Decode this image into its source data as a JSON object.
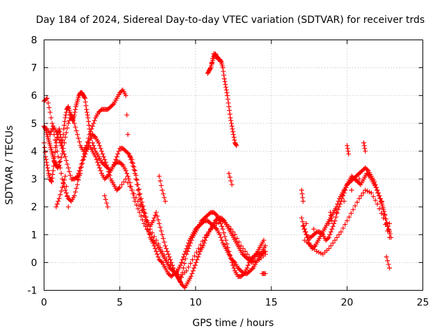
{
  "chart_data": {
    "type": "scatter",
    "title": "Day 184 of 2024, Sidereal Day-to-day VTEC variation (SDTVAR) for receiver trds",
    "xlabel": "GPS time / hours",
    "ylabel": "SDTVAR / TECUs",
    "xlim": [
      0,
      25
    ],
    "ylim": [
      -1,
      8
    ],
    "xticks": [
      "0",
      "5",
      "10",
      "15",
      "20",
      "25"
    ],
    "yticks": [
      "-1",
      "0",
      "1",
      "2",
      "3",
      "4",
      "5",
      "6",
      "7",
      "8"
    ],
    "grid": true,
    "marker": "+",
    "series_color": "#ff0000",
    "series": [
      {
        "name": "SDTVAR",
        "x": [
          0.0,
          0.1,
          0.2,
          0.3,
          0.4,
          0.5,
          0.6,
          0.7,
          0.8,
          0.9,
          1.0,
          1.1,
          1.2,
          1.3,
          1.4,
          1.5,
          1.6,
          1.7,
          1.8,
          1.9,
          2.0,
          2.1,
          2.2,
          2.3,
          2.4,
          2.5,
          2.6,
          2.7,
          2.8,
          2.9,
          3.0,
          3.2,
          3.4,
          3.6,
          3.8,
          4.0,
          4.2,
          4.4,
          4.6,
          4.8,
          5.0,
          5.2,
          5.4,
          5.6,
          5.8,
          6.0,
          6.2,
          6.4,
          6.6,
          6.8,
          7.0,
          7.2,
          7.4,
          7.6,
          7.8,
          8.0,
          8.2,
          8.4,
          8.6,
          8.8,
          9.0,
          9.2,
          9.4,
          9.6,
          9.8,
          10.0,
          10.2,
          10.4,
          10.6,
          10.8,
          11.0,
          11.2,
          11.4,
          11.6,
          11.8,
          12.0,
          12.2,
          12.4,
          12.6,
          12.8,
          13.0,
          13.2,
          13.4,
          13.6,
          13.8,
          14.0,
          14.2,
          14.4,
          14.6,
          17.0,
          17.2,
          17.4,
          17.6,
          17.8,
          18.0,
          18.2,
          18.4,
          18.6,
          18.8,
          19.0,
          19.2,
          19.4,
          19.6,
          19.8,
          20.0,
          20.2,
          20.4,
          20.6,
          20.8,
          21.0,
          21.2,
          21.4,
          21.6,
          21.8,
          22.0,
          22.2,
          22.4,
          22.6,
          22.8
        ],
        "y": [
          4.3,
          3.8,
          3.5,
          3.2,
          3.0,
          2.9,
          3.3,
          3.8,
          4.3,
          4.6,
          4.8,
          4.5,
          4.2,
          4.8,
          5.2,
          5.5,
          5.6,
          5.4,
          5.2,
          5.1,
          5.3,
          5.6,
          5.8,
          6.0,
          6.1,
          6.1,
          6.0,
          5.9,
          5.5,
          5.2,
          4.8,
          4.3,
          4.0,
          3.8,
          3.6,
          3.5,
          3.4,
          3.3,
          3.5,
          3.8,
          4.1,
          4.1,
          4.0,
          3.9,
          3.7,
          3.3,
          2.8,
          2.3,
          1.9,
          1.5,
          1.3,
          1.5,
          1.8,
          1.4,
          1.0,
          0.6,
          0.3,
          0.0,
          -0.3,
          -0.5,
          -0.7,
          -0.2,
          0.3,
          0.6,
          0.9,
          1.1,
          1.3,
          1.5,
          1.6,
          1.7,
          1.8,
          1.8,
          1.7,
          1.5,
          1.2,
          0.8,
          0.4,
          0.0,
          -0.3,
          -0.5,
          -0.5,
          -0.4,
          -0.2,
          0.1,
          0.2,
          0.3,
          0.3,
          0.3,
          0.4,
          1.6,
          1.2,
          0.9,
          0.9,
          1.0,
          1.1,
          1.1,
          1.0,
          0.8,
          0.9,
          1.2,
          1.5,
          1.9,
          2.2,
          2.5,
          2.8,
          2.9,
          3.0,
          3.1,
          3.2,
          3.3,
          3.4,
          3.3,
          3.1,
          2.9,
          2.6,
          2.3,
          1.9,
          1.4,
          1.1
        ]
      },
      {
        "name": "SDTVAR",
        "x": [
          0.0,
          0.1,
          0.2,
          0.3,
          0.4,
          0.5,
          0.6,
          0.7,
          0.8,
          0.9,
          1.0,
          1.2,
          1.4,
          1.6,
          1.8,
          2.0,
          2.2,
          2.4,
          2.6,
          2.8,
          3.0,
          3.2,
          3.4,
          3.6,
          3.8,
          4.0,
          4.2,
          4.4,
          4.6,
          4.8,
          5.0,
          5.2,
          5.4,
          5.6,
          5.8,
          6.0,
          6.2,
          6.4,
          6.6,
          6.8,
          7.0,
          7.2,
          7.4,
          7.6,
          7.8,
          8.0,
          8.2,
          8.4,
          8.6,
          8.8,
          9.0,
          9.2,
          9.4,
          9.6,
          9.8,
          10.0,
          10.2,
          10.4,
          10.6,
          10.8,
          11.0,
          11.2,
          11.4,
          11.6,
          11.8,
          12.0,
          12.2,
          12.4,
          12.6,
          12.8,
          13.0,
          13.2,
          13.4,
          13.6,
          13.8,
          14.0,
          14.2,
          14.4,
          14.6,
          17.1,
          17.3,
          17.5,
          17.7,
          17.9,
          18.1,
          18.3,
          18.5,
          18.7,
          18.9,
          19.1,
          19.3,
          19.5,
          19.7,
          19.9,
          20.1,
          20.3,
          20.5,
          20.7,
          20.9,
          21.1,
          21.3,
          21.5,
          21.7,
          21.9,
          22.1,
          22.3,
          22.5,
          22.7,
          22.9
        ],
        "y": [
          4.9,
          4.8,
          4.6,
          4.4,
          4.2,
          4.0,
          3.8,
          3.6,
          3.5,
          3.4,
          3.5,
          3.9,
          4.5,
          5.0,
          5.3,
          5.0,
          4.6,
          4.2,
          4.0,
          4.2,
          4.6,
          4.9,
          5.2,
          5.4,
          5.5,
          5.5,
          5.5,
          5.6,
          5.7,
          5.9,
          6.1,
          6.2,
          6.0,
          3.9,
          3.6,
          3.2,
          2.6,
          2.1,
          1.8,
          1.3,
          0.9,
          0.7,
          0.4,
          0.1,
          0.0,
          -0.2,
          -0.4,
          -0.5,
          -0.4,
          -0.3,
          -0.1,
          0.2,
          0.5,
          0.8,
          1.0,
          1.2,
          1.3,
          1.4,
          1.5,
          1.5,
          1.4,
          1.3,
          1.2,
          1.0,
          0.7,
          0.5,
          0.3,
          0.1,
          0.0,
          -0.2,
          -0.3,
          -0.4,
          -0.4,
          -0.3,
          -0.2,
          0.0,
          0.2,
          0.4,
          0.6,
          1.3,
          1.0,
          0.7,
          0.5,
          0.6,
          0.8,
          1.0,
          1.2,
          1.4,
          1.6,
          1.8,
          2.0,
          2.3,
          2.5,
          2.7,
          2.9,
          3.1,
          3.0,
          2.9,
          2.8,
          3.0,
          3.2,
          3.1,
          2.9,
          2.7,
          2.4,
          2.1,
          1.7,
          1.3,
          0.9
        ]
      },
      {
        "name": "SDTVAR",
        "x": [
          0.0,
          0.2,
          0.4,
          0.6,
          0.8,
          1.0,
          1.2,
          1.4,
          1.6,
          1.8,
          2.0,
          2.2,
          2.4,
          2.6,
          2.8,
          3.0,
          3.2,
          3.4,
          3.6,
          3.8,
          4.0,
          4.2,
          4.4,
          4.6,
          4.8,
          5.0,
          5.2,
          5.4,
          5.6,
          5.8,
          6.0,
          6.3,
          6.6,
          6.9,
          7.2,
          7.5,
          7.7,
          7.9,
          8.1,
          8.3,
          8.5,
          8.7,
          8.9,
          9.1,
          9.3,
          9.5,
          9.7,
          9.9,
          10.1,
          10.3,
          10.5,
          10.7,
          10.9,
          11.1,
          11.3,
          11.5,
          11.7,
          11.9,
          12.1,
          12.3,
          12.5,
          12.7,
          12.9,
          13.1,
          13.3,
          13.5,
          13.7,
          13.9,
          14.1,
          14.3,
          14.5,
          17.2,
          17.6,
          18.0,
          18.4,
          18.8,
          19.2,
          19.6,
          20.0,
          20.4,
          20.8,
          21.2,
          21.6,
          22.0,
          22.4,
          22.8
        ],
        "y": [
          5.8,
          5.9,
          5.4,
          4.8,
          4.2,
          3.6,
          3.0,
          2.6,
          2.3,
          2.2,
          2.4,
          2.8,
          3.3,
          3.7,
          4.0,
          4.2,
          4.0,
          3.8,
          3.5,
          3.2,
          3.0,
          3.1,
          3.3,
          3.5,
          3.6,
          3.6,
          3.5,
          3.3,
          3.0,
          2.6,
          2.2,
          1.8,
          1.4,
          1.1,
          0.8,
          0.6,
          0.4,
          0.2,
          0.0,
          -0.2,
          -0.3,
          -0.4,
          -0.6,
          -0.8,
          -0.9,
          -0.7,
          -0.5,
          -0.2,
          0.1,
          0.4,
          0.6,
          0.9,
          1.1,
          1.3,
          1.5,
          1.6,
          1.6,
          1.5,
          1.3,
          1.1,
          0.9,
          0.7,
          0.5,
          0.3,
          0.2,
          0.1,
          0.0,
          0.2,
          0.4,
          0.6,
          0.8,
          0.8,
          0.6,
          0.4,
          0.3,
          0.5,
          0.8,
          1.1,
          1.5,
          1.9,
          2.3,
          2.6,
          2.5,
          2.1,
          1.6,
          0.9
        ]
      },
      {
        "name": "SDTVAR",
        "x": [
          0.2,
          0.4,
          0.6,
          0.8,
          1.0,
          1.2,
          1.4,
          1.6,
          1.8,
          2.0,
          2.2,
          2.4,
          2.6,
          2.8,
          3.0,
          3.2,
          3.4,
          3.6,
          3.8,
          4.0,
          4.2,
          4.4,
          4.6,
          4.8,
          5.0,
          5.4,
          5.8,
          6.2,
          6.6,
          7.0,
          7.4,
          7.8,
          8.2,
          8.6,
          9.0,
          9.4,
          9.8,
          10.2,
          10.6,
          11.0,
          11.4,
          11.8,
          12.2,
          12.6,
          13.0,
          13.4,
          13.8,
          14.2,
          14.6,
          17.3,
          17.8,
          18.3,
          18.8,
          19.3,
          19.8,
          20.3,
          20.8,
          21.3,
          21.8,
          22.3,
          22.8
        ],
        "y": [
          4.8,
          4.6,
          4.9,
          4.7,
          4.4,
          4.1,
          3.8,
          3.4,
          3.0,
          3.0,
          3.1,
          3.4,
          3.8,
          4.1,
          4.4,
          4.6,
          4.5,
          4.3,
          4.0,
          3.7,
          3.4,
          3.0,
          2.8,
          2.6,
          2.7,
          3.0,
          2.6,
          2.2,
          1.7,
          1.2,
          0.8,
          0.4,
          0.0,
          -0.3,
          -0.5,
          -0.3,
          0.1,
          0.5,
          0.9,
          1.2,
          1.4,
          1.5,
          1.3,
          1.0,
          0.6,
          0.3,
          0.0,
          0.1,
          0.3,
          1.4,
          1.2,
          1.0,
          1.4,
          1.8,
          2.2,
          2.6,
          3.0,
          3.2,
          2.9,
          2.2,
          1.4
        ]
      },
      {
        "name": "SDTVAR",
        "x": [
          10.8,
          10.9,
          11.0,
          11.1,
          11.2,
          11.3,
          11.4,
          11.5,
          11.6,
          11.7,
          11.8,
          11.9,
          12.0,
          12.1,
          12.2,
          12.3,
          12.4,
          12.5,
          12.6,
          12.7
        ],
        "y": [
          6.8,
          6.9,
          7.0,
          7.2,
          7.4,
          7.5,
          7.4,
          7.3,
          7.3,
          7.2,
          7.0,
          6.6,
          6.3,
          6.0,
          5.6,
          5.2,
          4.9,
          4.6,
          4.3,
          4.2
        ]
      },
      {
        "name": "SDTVAR",
        "x": [
          0.8,
          1.0,
          1.2,
          1.4,
          1.6,
          2.2,
          2.4,
          4.0,
          4.2,
          7.6,
          7.8,
          8.0,
          11.0,
          11.2,
          12.2,
          12.4,
          14.4,
          14.6,
          17.0,
          17.1,
          18.9,
          19.0,
          20.0,
          20.1,
          21.1,
          21.2,
          22.6,
          22.8
        ],
        "y": [
          2.0,
          2.3,
          2.7,
          3.1,
          2.0,
          3.0,
          3.2,
          2.4,
          2.0,
          3.1,
          2.6,
          2.2,
          7.0,
          7.5,
          3.2,
          2.8,
          -0.4,
          -0.4,
          2.6,
          2.2,
          1.8,
          1.5,
          4.2,
          3.9,
          4.3,
          4.0,
          0.2,
          -0.2
        ]
      }
    ]
  }
}
